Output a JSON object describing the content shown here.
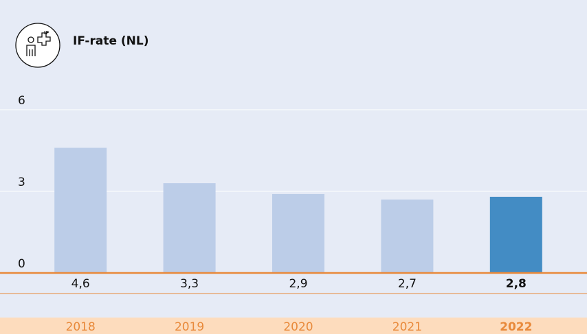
{
  "chart_data": {
    "type": "bar",
    "title": "IF-rate (NL)",
    "categories": [
      "2018",
      "2019",
      "2020",
      "2021",
      "2022"
    ],
    "values": [
      4.6,
      3.3,
      2.9,
      2.7,
      2.8
    ],
    "value_labels": [
      "4,6",
      "3,3",
      "2,9",
      "2,7",
      "2,8"
    ],
    "color": "#bccde8",
    "colors": [
      "#bccde8",
      "#bccde8",
      "#bccde8",
      "#bccde8",
      "#438cc4"
    ],
    "ylim": [
      0,
      6
    ],
    "yticks": [
      0,
      3,
      6
    ],
    "grid": true
  }
}
